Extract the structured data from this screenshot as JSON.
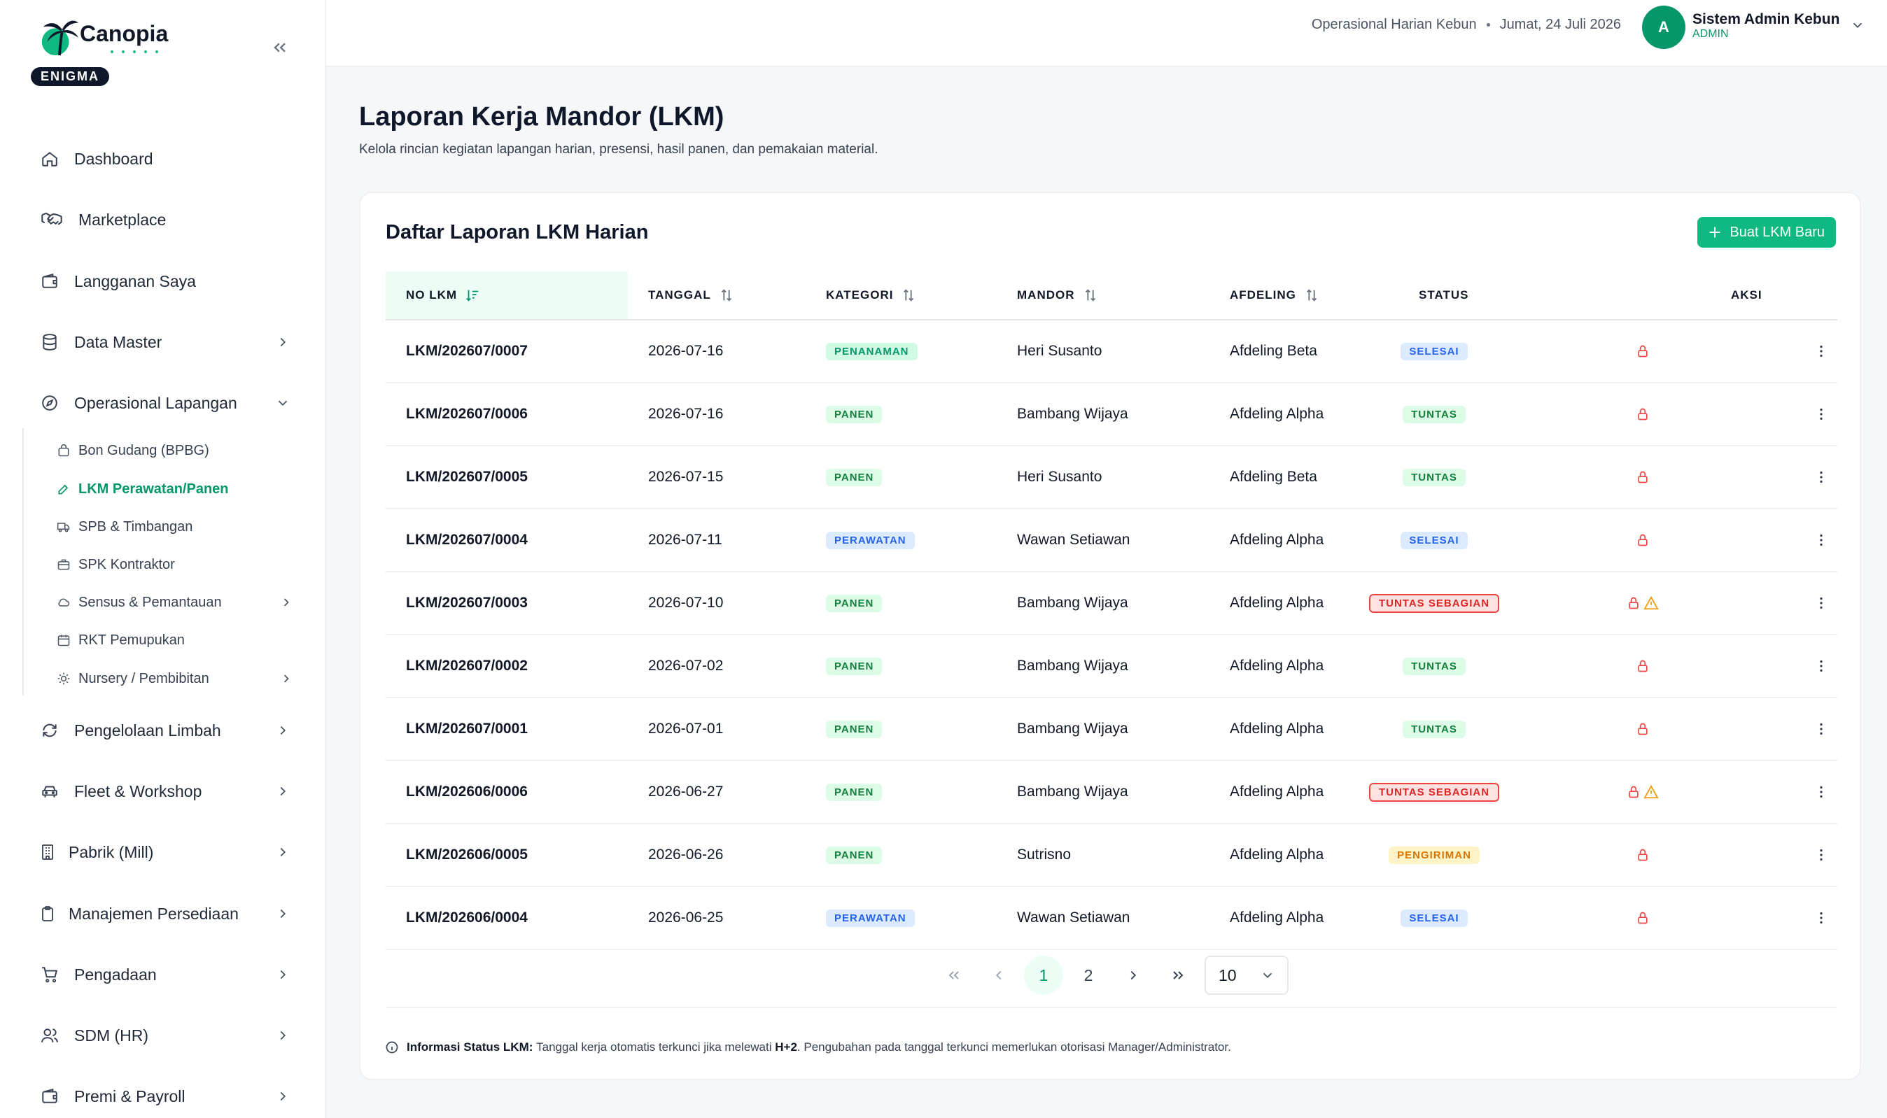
{
  "brand": {
    "name": "Canopia",
    "badge": "ENIGMA"
  },
  "sidebar": {
    "items": [
      {
        "label": "Dashboard",
        "icon": "home-icon"
      },
      {
        "label": "Marketplace",
        "icon": "handshake-icon"
      },
      {
        "label": "Langganan Saya",
        "icon": "wallet-icon"
      },
      {
        "label": "Data Master",
        "icon": "database-icon"
      },
      {
        "label": "Operasional Lapangan",
        "icon": "compass-icon"
      },
      {
        "label": "Pengelolaan Limbah",
        "icon": "recycle-icon"
      },
      {
        "label": "Fleet & Workshop",
        "icon": "truck-icon"
      },
      {
        "label": "Pabrik (Mill)",
        "icon": "building-icon"
      },
      {
        "label": "Manajemen Persediaan",
        "icon": "clipboard-icon"
      },
      {
        "label": "Pengadaan",
        "icon": "cart-icon"
      },
      {
        "label": "SDM (HR)",
        "icon": "users-icon"
      },
      {
        "label": "Premi & Payroll",
        "icon": "wallet-icon"
      }
    ],
    "sub_items": [
      {
        "label": "Bon Gudang (BPBG)",
        "icon": "bag-icon"
      },
      {
        "label": "LKM Perawatan/Panen",
        "icon": "edit-icon"
      },
      {
        "label": "SPB & Timbangan",
        "icon": "truck-icon"
      },
      {
        "label": "SPK Kontraktor",
        "icon": "briefcase-icon"
      },
      {
        "label": "Sensus & Pemantauan",
        "icon": "cloud-icon"
      },
      {
        "label": "RKT Pemupukan",
        "icon": "calendar-icon"
      },
      {
        "label": "Nursery / Pembibitan",
        "icon": "sun-icon"
      }
    ]
  },
  "header": {
    "context": "Operasional Harian Kebun",
    "date": "Jumat, 24 Juli 2026",
    "avatar_initial": "A",
    "user_name": "Sistem Admin Kebun",
    "user_role": "ADMIN"
  },
  "page": {
    "title": "Laporan Kerja Mandor (LKM)",
    "subtitle": "Kelola rincian kegiatan lapangan harian, presensi, hasil panen, dan pemakaian material."
  },
  "card": {
    "title": "Daftar Laporan LKM Harian",
    "new_button": "Buat LKM Baru"
  },
  "table": {
    "columns": [
      "NO LKM",
      "TANGGAL",
      "KATEGORI",
      "MANDOR",
      "AFDELING",
      "STATUS",
      "AKSI"
    ],
    "rows": [
      {
        "no": "LKM/202607/0007",
        "tanggal": "2026-07-16",
        "kategori": "PENANAMAN",
        "mandor": "Heri Susanto",
        "afdeling": "Afdeling Beta",
        "status": "SELESAI",
        "warning": false
      },
      {
        "no": "LKM/202607/0006",
        "tanggal": "2026-07-16",
        "kategori": "PANEN",
        "mandor": "Bambang Wijaya",
        "afdeling": "Afdeling Alpha",
        "status": "TUNTAS",
        "warning": false
      },
      {
        "no": "LKM/202607/0005",
        "tanggal": "2026-07-15",
        "kategori": "PANEN",
        "mandor": "Heri Susanto",
        "afdeling": "Afdeling Beta",
        "status": "TUNTAS",
        "warning": false
      },
      {
        "no": "LKM/202607/0004",
        "tanggal": "2026-07-11",
        "kategori": "PERAWATAN",
        "mandor": "Wawan Setiawan",
        "afdeling": "Afdeling Alpha",
        "status": "SELESAI",
        "warning": false
      },
      {
        "no": "LKM/202607/0003",
        "tanggal": "2026-07-10",
        "kategori": "PANEN",
        "mandor": "Bambang Wijaya",
        "afdeling": "Afdeling Alpha",
        "status": "TUNTAS SEBAGIAN",
        "warning": true
      },
      {
        "no": "LKM/202607/0002",
        "tanggal": "2026-07-02",
        "kategori": "PANEN",
        "mandor": "Bambang Wijaya",
        "afdeling": "Afdeling Alpha",
        "status": "TUNTAS",
        "warning": false
      },
      {
        "no": "LKM/202607/0001",
        "tanggal": "2026-07-01",
        "kategori": "PANEN",
        "mandor": "Bambang Wijaya",
        "afdeling": "Afdeling Alpha",
        "status": "TUNTAS",
        "warning": false
      },
      {
        "no": "LKM/202606/0006",
        "tanggal": "2026-06-27",
        "kategori": "PANEN",
        "mandor": "Bambang Wijaya",
        "afdeling": "Afdeling Alpha",
        "status": "TUNTAS SEBAGIAN",
        "warning": true
      },
      {
        "no": "LKM/202606/0005",
        "tanggal": "2026-06-26",
        "kategori": "PANEN",
        "mandor": "Sutrisno",
        "afdeling": "Afdeling Alpha",
        "status": "PENGIRIMAN",
        "warning": false
      },
      {
        "no": "LKM/202606/0004",
        "tanggal": "2026-06-25",
        "kategori": "PERAWATAN",
        "mandor": "Wawan Setiawan",
        "afdeling": "Afdeling Alpha",
        "status": "SELESAI",
        "warning": false
      }
    ]
  },
  "pagination": {
    "pages": [
      "1",
      "2"
    ],
    "current": "1",
    "page_size": "10"
  },
  "info": {
    "label": "Informasi Status LKM:",
    "text_before": "Tanggal kerja otomatis terkunci jika melewati",
    "highlight": "H+2",
    "text_after": ". Pengubahan pada tanggal terkunci memerlukan otorisasi Manager/Administrator."
  },
  "colors": {
    "accent": "#10b981",
    "accent_dark": "#059669",
    "danger": "#ef4444",
    "warning": "#f59e0b"
  }
}
